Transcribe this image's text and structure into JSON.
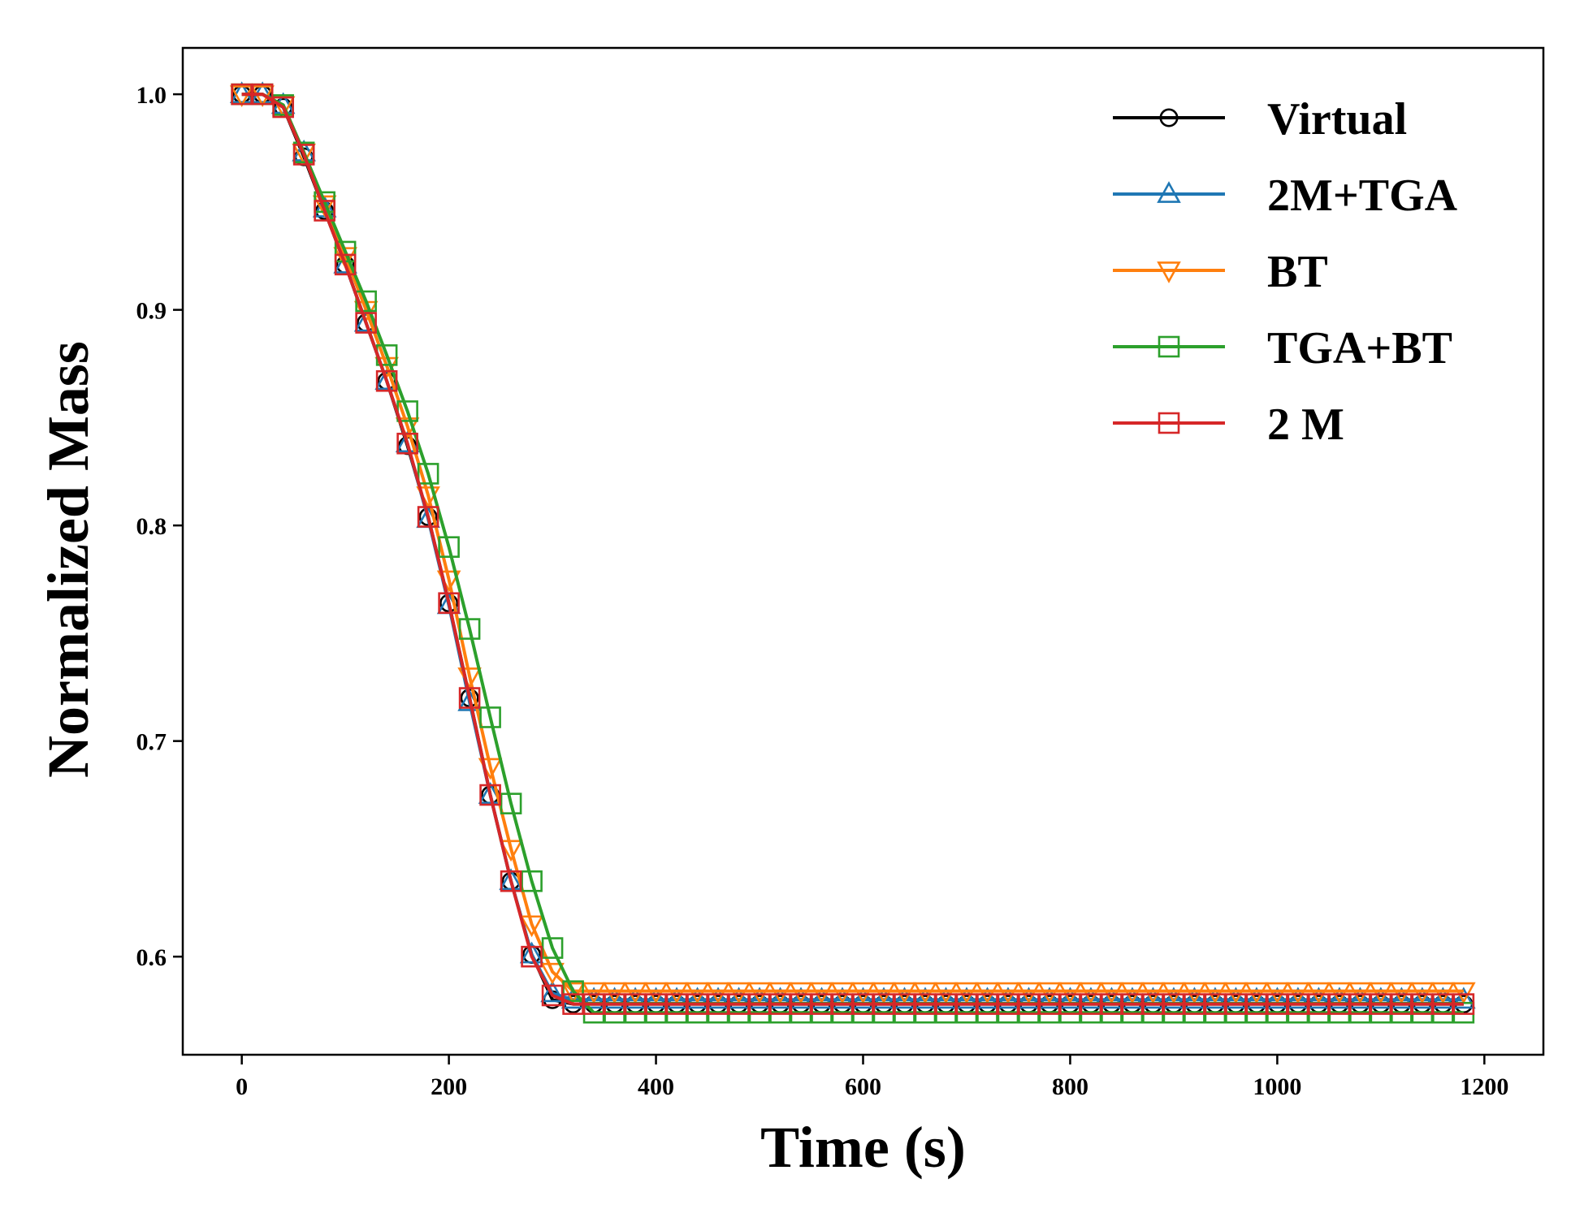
{
  "chart_data": {
    "type": "line",
    "title": "",
    "xlabel": "Time (s)",
    "ylabel": "Normalized Mass",
    "xlim": [
      -57,
      1257
    ],
    "ylim": [
      0.5545,
      1.0215
    ],
    "xticks": [
      0,
      200,
      400,
      600,
      800,
      1000,
      1200
    ],
    "yticks": [
      0.6,
      0.7,
      0.8,
      0.9,
      1.0
    ],
    "xtick_labels": [
      "0",
      "200",
      "400",
      "600",
      "800",
      "1000",
      "1200"
    ],
    "ytick_labels": [
      "0.6",
      "0.7",
      "0.8",
      "0.9",
      "1.0"
    ],
    "grid": false,
    "legend_position": "top-right",
    "marker_interval_s": 20,
    "series": [
      {
        "name": "Virtual",
        "color": "#000000",
        "marker": "circle",
        "x": [
          0,
          20,
          40,
          60,
          80,
          100,
          120,
          140,
          160,
          180,
          200,
          220,
          240,
          260,
          280,
          300,
          320,
          1180
        ],
        "y": [
          1.0,
          1.0,
          0.994,
          0.971,
          0.946,
          0.921,
          0.894,
          0.867,
          0.837,
          0.804,
          0.764,
          0.72,
          0.675,
          0.635,
          0.601,
          0.58,
          0.578,
          0.578
        ]
      },
      {
        "name": "2M+TGA",
        "color": "#1f77b4",
        "marker": "triangle-up",
        "x": [
          0,
          20,
          40,
          60,
          80,
          100,
          120,
          140,
          160,
          180,
          200,
          220,
          240,
          260,
          280,
          300,
          320,
          1180
        ],
        "y": [
          1.0,
          1.0,
          0.995,
          0.973,
          0.947,
          0.921,
          0.894,
          0.867,
          0.838,
          0.803,
          0.763,
          0.718,
          0.675,
          0.635,
          0.601,
          0.583,
          0.58,
          0.58
        ]
      },
      {
        "name": "BT",
        "color": "#ff7f0e",
        "marker": "triangle-down",
        "x": [
          0,
          20,
          40,
          60,
          80,
          100,
          120,
          140,
          160,
          180,
          200,
          220,
          240,
          260,
          280,
          300,
          320,
          1180
        ],
        "y": [
          1.0,
          1.0,
          0.995,
          0.973,
          0.949,
          0.925,
          0.9,
          0.874,
          0.846,
          0.814,
          0.775,
          0.73,
          0.688,
          0.65,
          0.615,
          0.593,
          0.584,
          0.584
        ]
      },
      {
        "name": "TGA+BT",
        "color": "#2ca02c",
        "marker": "square",
        "x": [
          0,
          20,
          40,
          60,
          80,
          100,
          120,
          140,
          160,
          180,
          200,
          220,
          240,
          260,
          280,
          300,
          320,
          340,
          1180
        ],
        "y": [
          1.0,
          1.0,
          0.995,
          0.973,
          0.95,
          0.927,
          0.904,
          0.879,
          0.853,
          0.824,
          0.79,
          0.752,
          0.711,
          0.671,
          0.635,
          0.604,
          0.584,
          0.574,
          0.574
        ]
      },
      {
        "name": "2 M",
        "color": "#d62728",
        "marker": "square",
        "x": [
          0,
          20,
          40,
          60,
          80,
          100,
          120,
          140,
          160,
          180,
          200,
          220,
          240,
          260,
          280,
          300,
          320,
          1180
        ],
        "y": [
          1.0,
          1.0,
          0.994,
          0.972,
          0.946,
          0.921,
          0.894,
          0.867,
          0.838,
          0.804,
          0.764,
          0.72,
          0.675,
          0.635,
          0.6,
          0.582,
          0.578,
          0.578
        ]
      }
    ]
  }
}
